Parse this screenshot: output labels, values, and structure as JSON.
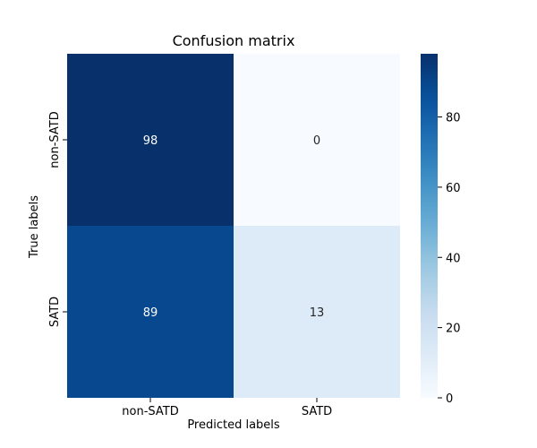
{
  "chart_data": {
    "type": "heatmap",
    "title": "Confusion matrix",
    "xlabel": "Predicted labels",
    "ylabel": "True labels",
    "x_categories": [
      "non-SATD",
      "SATD"
    ],
    "y_categories": [
      "non-SATD",
      "SATD"
    ],
    "values": [
      [
        98,
        0
      ],
      [
        89,
        13
      ]
    ],
    "colormap": "Blues",
    "colorbar": {
      "range": [
        0,
        98
      ],
      "ticks": [
        0,
        20,
        40,
        60,
        80
      ]
    },
    "grid": false,
    "legend": "colorbar-right"
  }
}
